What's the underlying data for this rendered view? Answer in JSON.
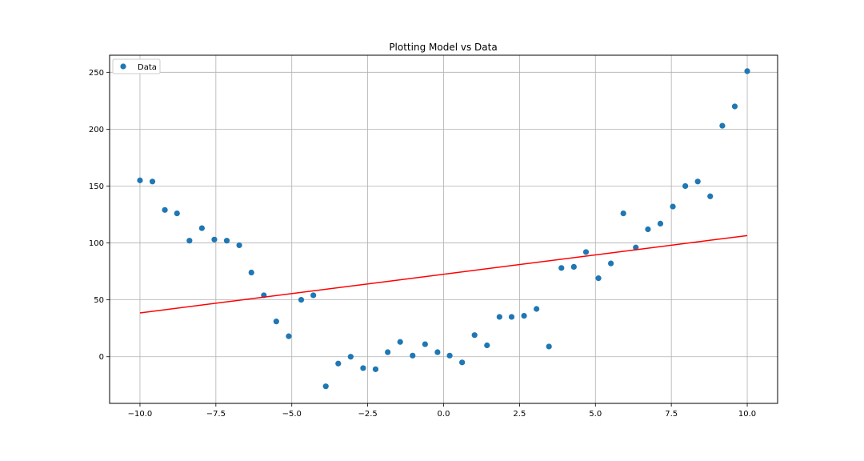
{
  "chart_data": {
    "type": "scatter",
    "title": "Plotting Model vs Data",
    "xlabel": "",
    "ylabel": "",
    "xlim": [
      -11.0,
      11.0
    ],
    "ylim": [
      -41,
      265
    ],
    "xticks": [
      -10.0,
      -7.5,
      -5.0,
      -2.5,
      0.0,
      2.5,
      5.0,
      7.5,
      10.0
    ],
    "xtick_labels": [
      "−10.0",
      "−7.5",
      "−5.0",
      "−2.5",
      "0.0",
      "2.5",
      "5.0",
      "7.5",
      "10.0"
    ],
    "yticks": [
      0,
      50,
      100,
      150,
      200,
      250
    ],
    "ytick_labels": [
      "0",
      "50",
      "100",
      "150",
      "200",
      "250"
    ],
    "grid": true,
    "legend_position": "top-left",
    "series": [
      {
        "name": "Data",
        "kind": "scatter",
        "color": "#1f77b4",
        "x": [
          -10.0,
          -9.59,
          -9.18,
          -8.78,
          -8.37,
          -7.96,
          -7.55,
          -7.14,
          -6.73,
          -6.33,
          -5.92,
          -5.51,
          -5.1,
          -4.69,
          -4.29,
          -3.88,
          -3.47,
          -3.06,
          -2.65,
          -2.24,
          -1.84,
          -1.43,
          -1.02,
          -0.61,
          -0.2,
          0.2,
          0.61,
          1.02,
          1.43,
          1.84,
          2.24,
          2.65,
          3.06,
          3.47,
          3.88,
          4.29,
          4.69,
          5.1,
          5.51,
          5.92,
          6.33,
          6.73,
          7.14,
          7.55,
          7.96,
          8.37,
          8.78,
          9.18,
          9.59,
          10.0
        ],
        "y": [
          155,
          154,
          129,
          126,
          102,
          113,
          103,
          102,
          98,
          74,
          54,
          31,
          18,
          50,
          54,
          -26,
          -6,
          0,
          -10,
          -11,
          4,
          13,
          1,
          11,
          4,
          1,
          -5,
          19,
          10,
          35,
          35,
          36,
          42,
          9,
          78,
          79,
          92,
          69,
          82,
          126,
          96,
          112,
          117,
          132,
          150,
          154,
          141,
          203,
          220,
          251
        ]
      },
      {
        "name": "",
        "kind": "line",
        "color": "#ff0000",
        "x": [
          -10.0,
          10.0
        ],
        "y": [
          38.5,
          106.5
        ]
      }
    ]
  }
}
